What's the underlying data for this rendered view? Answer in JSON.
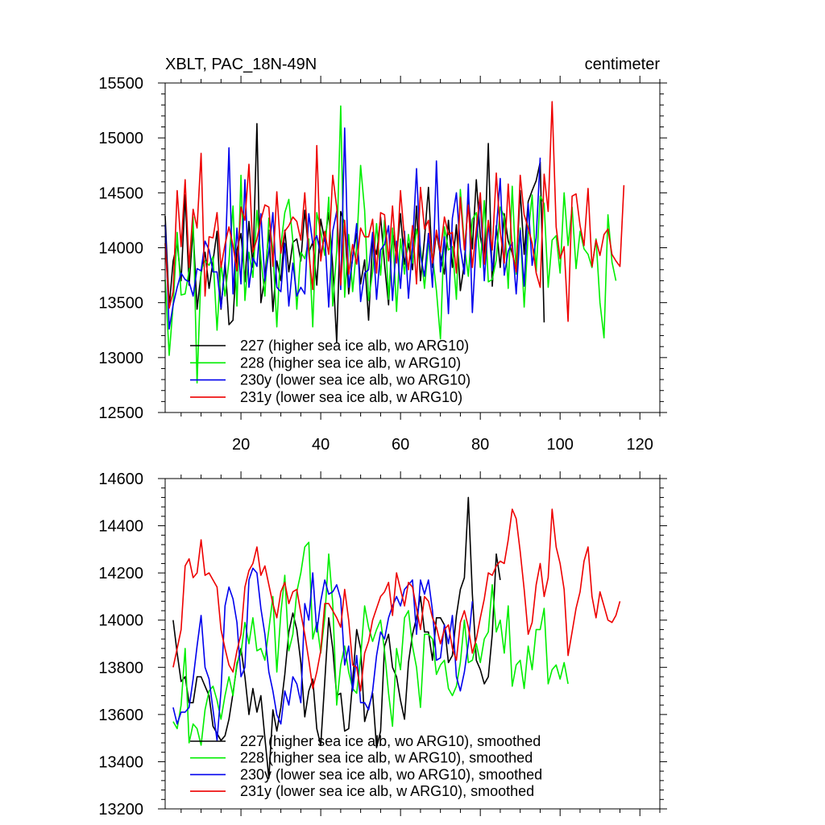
{
  "chart_data": [
    {
      "type": "line",
      "title": "XBLT, PAC_18N-49N",
      "units": "centimeter",
      "xlabel": "",
      "ylabel": "",
      "xlim": [
        1,
        125
      ],
      "ylim": [
        12500,
        15500
      ],
      "xticks": [
        20,
        40,
        60,
        80,
        100,
        120
      ],
      "xtick_labels": [
        "20",
        "40",
        "60",
        "80",
        "100",
        "120"
      ],
      "yticks": [
        12500,
        13000,
        13500,
        14000,
        14500,
        15000,
        15500
      ],
      "ytick_labels": [
        "12500",
        "13000",
        "13500",
        "14000",
        "14500",
        "15000",
        "15500"
      ],
      "legend_position": "bottom-left",
      "series": [
        {
          "name": "227 (higher sea ice alb, wo ARG10)",
          "color": "#000000",
          "x_start": 1,
          "values": [
            14290,
            13460,
            13880,
            14040,
            13700,
            14480,
            13660,
            14180,
            13440,
            13770,
            13960,
            13630,
            13880,
            14150,
            13440,
            13870,
            13300,
            13340,
            13980,
            14130,
            13690,
            14240,
            13820,
            15130,
            13500,
            13730,
            14160,
            13420,
            13880,
            13700,
            14160,
            13780,
            14050,
            14080,
            13880,
            14340,
            13960,
            14050,
            13660,
            14260,
            14060,
            14320,
            13830,
            13140,
            14330,
            14220,
            13580,
            13920,
            14130,
            13670,
            13890,
            13340,
            14060,
            13940,
            14280,
            13850,
            13480,
            14150,
            13920,
            14310,
            13850,
            14040,
            13800,
            14380,
            13700,
            14080,
            14550,
            13820,
            14140,
            13930,
            13760,
            14250,
            13820,
            14210,
            13610,
            13860,
            14480,
            13990,
            14620,
            14100,
            13890,
            14950,
            13650,
            14200,
            13820,
            14310,
            14060,
            13950,
            13800,
            14520,
            13940,
            14420,
            14520,
            14610,
            14780,
            13320
          ]
        },
        {
          "name": "228 (higher sea ice alb, w ARG10)",
          "color": "#00ee00",
          "x_start": 1,
          "values": [
            13710,
            13020,
            13480,
            14140,
            13570,
            13580,
            13790,
            14280,
            12770,
            13800,
            13880,
            13840,
            13920,
            13250,
            13860,
            13560,
            13880,
            14380,
            13470,
            14660,
            13520,
            13960,
            13730,
            14340,
            13900,
            13560,
            14270,
            13980,
            13280,
            14020,
            14320,
            14440,
            14060,
            13440,
            13960,
            13900,
            14080,
            13280,
            14320,
            14150,
            13930,
            14460,
            13470,
            13970,
            15290,
            13550,
            14120,
            13600,
            14010,
            14750,
            14340,
            13520,
            13780,
            14220,
            13750,
            14250,
            13530,
            14180,
            13420,
            14080,
            13760,
            14120,
            13860,
            14170,
            14000,
            13630,
            14040,
            13930,
            13610,
            13170,
            14190,
            13980,
            14010,
            13530,
            14530,
            14020,
            13740,
            14260,
            14320,
            13820,
            14430,
            13690,
            13710,
            13890,
            14370,
            14280,
            13630,
            14560,
            13760,
            14180,
            13460,
            14130,
            14480,
            13780,
            14470,
            14400,
            13640,
            14070,
            14110,
            13770,
            14500,
            14020,
            14370,
            13810,
            14150,
            13990,
            13940,
            13820,
            14080,
            13500,
            13180,
            14300,
            13870,
            13700
          ]
        },
        {
          "name": "230y (lower sea ice alb, wo ARG10)",
          "color": "#0000ee",
          "x_start": 1,
          "values": [
            14210,
            13260,
            13480,
            13640,
            13770,
            13710,
            13690,
            13560,
            13810,
            13790,
            14060,
            13980,
            13780,
            13780,
            13450,
            13840,
            14910,
            13580,
            14180,
            13670,
            14620,
            13640,
            13910,
            13830,
            14310,
            13700,
            13970,
            14320,
            13640,
            13600,
            14040,
            13470,
            13860,
            13560,
            13640,
            13580,
            14310,
            14040,
            14110,
            13930,
            14120,
            13460,
            14150,
            14330,
            13620,
            15090,
            13640,
            13900,
            14220,
            13510,
            13770,
            13800,
            14140,
            13530,
            13980,
            14030,
            14200,
            13520,
            14060,
            13630,
            14150,
            13540,
            14010,
            14720,
            13930,
            13740,
            14130,
            13640,
            14790,
            13780,
            14100,
            13400,
            14270,
            14500,
            14000,
            13760,
            14580,
            13410,
            14070,
            14440,
            13700,
            14230,
            13790,
            14160,
            14630,
            13750,
            13970,
            14050,
            13580,
            14160,
            13650,
            14400,
            13840,
            14090,
            14820
          ]
        },
        {
          "name": "231y (lower sea ice alb, w ARG10)",
          "color": "#ee0000",
          "x_start": 1,
          "values": [
            14040,
            13450,
            13600,
            14520,
            14010,
            14620,
            13820,
            14350,
            14180,
            14860,
            13560,
            14100,
            14090,
            14320,
            13820,
            14030,
            14190,
            14020,
            13790,
            14370,
            14250,
            14760,
            13960,
            14080,
            14250,
            14390,
            14370,
            13830,
            14510,
            13950,
            14150,
            14200,
            14280,
            14240,
            14070,
            14500,
            13950,
            13620,
            14930,
            13880,
            14150,
            13940,
            14660,
            14370,
            13660,
            14250,
            13760,
            14030,
            13850,
            14180,
            14100,
            14100,
            14260,
            13770,
            14320,
            14300,
            13880,
            14380,
            13860,
            14520,
            14070,
            13800,
            14200,
            13670,
            14550,
            14170,
            14250,
            13860,
            14160,
            13960,
            14280,
            14120,
            14140,
            13770,
            14460,
            13980,
            14390,
            13820,
            14170,
            14500,
            13850,
            14250,
            13980,
            14680,
            14150,
            13860,
            14580,
            13970,
            13780,
            14660,
            14300,
            14180,
            14040,
            13770,
            13640,
            14670,
            14330,
            15330,
            14190,
            13900,
            14010,
            13330,
            14470,
            14490,
            14200,
            14020,
            14540,
            13830,
            14070,
            13930,
            14120,
            14170,
            13940,
            13880,
            13830,
            14570
          ]
        }
      ]
    },
    {
      "type": "line",
      "title": "",
      "xlabel": "",
      "ylabel": "",
      "xlim": [
        1,
        125
      ],
      "ylim": [
        13200,
        14600
      ],
      "xticks": [
        20,
        40,
        60,
        80,
        100,
        120
      ],
      "yticks": [
        13200,
        13400,
        13600,
        13800,
        14000,
        14200,
        14400,
        14600
      ],
      "ytick_labels": [
        "13200",
        "13400",
        "13600",
        "13800",
        "14000",
        "14200",
        "14400",
        "14600"
      ],
      "legend_position": "bottom-left",
      "series": [
        {
          "name": "227 (higher sea ice alb, wo ARG10), smoothed",
          "color": "#000000",
          "x_start": 3,
          "values": [
            14000,
            13860,
            13740,
            13760,
            13650,
            13650,
            13760,
            13760,
            13720,
            13680,
            13550,
            13520,
            13490,
            13510,
            13580,
            13690,
            13810,
            13880,
            13760,
            13600,
            13710,
            13610,
            13680,
            13500,
            13330,
            13620,
            13530,
            13630,
            13770,
            13950,
            14030,
            13960,
            13820,
            13590,
            13700,
            13750,
            13540,
            13470,
            13740,
            14010,
            13880,
            13680,
            13690,
            13530,
            13540,
            13740,
            13960,
            13880,
            13570,
            13630,
            13690,
            13460,
            13530,
            13890,
            13940,
            13800,
            13760,
            13660,
            13580,
            13820,
            13940,
            14010,
            14100,
            13950,
            13950,
            13830,
            14010,
            14010,
            13980,
            13820,
            13850,
            14020,
            14130,
            14180,
            14520,
            14110,
            13830,
            13790,
            13730,
            13760,
            13940,
            14280,
            14170
          ]
        },
        {
          "name": "228 (higher sea ice alb, w ARG10), smoothed",
          "color": "#00ee00",
          "x_start": 3,
          "values": [
            13570,
            13540,
            13640,
            13880,
            13480,
            13560,
            13540,
            13470,
            13620,
            13700,
            13720,
            13660,
            13580,
            13680,
            13760,
            13680,
            13820,
            13860,
            13990,
            13900,
            14010,
            13870,
            13880,
            13830,
            13960,
            14100,
            13780,
            14030,
            14190,
            13870,
            13940,
            14120,
            14200,
            14310,
            14330,
            13920,
            13990,
            13860,
            14010,
            14280,
            14070,
            13640,
            13810,
            13890,
            13780,
            13710,
            13690,
            13840,
            14060,
            13970,
            13910,
            13960,
            14000,
            13870,
            13690,
            13550,
            13880,
            13790,
            14010,
            14040,
            13890,
            13800,
            13630,
            13940,
            13940,
            13920,
            13770,
            13810,
            13830,
            13710,
            13680,
            13720,
            13820,
            14000,
            13820,
            13830,
            13900,
            13820,
            13920,
            13950,
            14150,
            13950,
            14000,
            13860,
            14060,
            13720,
            13810,
            13830,
            13710,
            13890,
            13790,
            13960,
            13960,
            14050,
            13730,
            13790,
            13810,
            13750,
            13820,
            13730
          ]
        },
        {
          "name": "230y (lower sea ice alb, wo ARG10), smoothed",
          "color": "#0000ee",
          "x_start": 3,
          "values": [
            13630,
            13560,
            13610,
            13610,
            13630,
            13750,
            13890,
            14020,
            13800,
            13750,
            13620,
            13490,
            13700,
            14060,
            14140,
            14090,
            13990,
            13760,
            13800,
            14170,
            14220,
            14200,
            14050,
            13940,
            13780,
            13700,
            13600,
            13560,
            13700,
            13640,
            13760,
            13730,
            13650,
            14070,
            14000,
            14200,
            13950,
            14080,
            14170,
            14110,
            14120,
            14150,
            14090,
            13810,
            13890,
            13700,
            13850,
            13650,
            13650,
            13620,
            13700,
            13850,
            13950,
            13920,
            14010,
            14060,
            14100,
            14060,
            14130,
            14150,
            14170,
            13940,
            14170,
            14110,
            14170,
            14040,
            13830,
            13840,
            13980,
            13900,
            14020,
            13760,
            13700,
            13780,
            13900,
            14080
          ]
        },
        {
          "name": "231y (lower sea ice alb, w ARG10), smoothed",
          "color": "#ee0000",
          "x_start": 3,
          "values": [
            13800,
            13880,
            13960,
            14230,
            14260,
            14180,
            14200,
            14340,
            14190,
            14200,
            14170,
            14140,
            13960,
            13880,
            13810,
            13780,
            13870,
            13940,
            14140,
            14210,
            14240,
            14310,
            14190,
            14230,
            14150,
            14070,
            14010,
            14120,
            14160,
            14070,
            14120,
            14130,
            14030,
            13940,
            13830,
            13710,
            13780,
            13870,
            14070,
            14070,
            14040,
            14010,
            13970,
            14130,
            14000,
            13810,
            13800,
            13700,
            13860,
            13910,
            14000,
            14050,
            14100,
            14120,
            14160,
            14020,
            14200,
            14130,
            14060,
            14160,
            14140,
            14050,
            13960,
            14100,
            14080,
            14010,
            13970,
            13900,
            13960,
            13980,
            13880,
            13830,
            13990,
            14040,
            13970,
            13860,
            13920,
            14010,
            14090,
            14200,
            14190,
            14230,
            14250,
            14240,
            14340,
            14470,
            14430,
            14290,
            14130,
            13940,
            13990,
            14150,
            14240,
            14100,
            14180,
            14470,
            14310,
            14240,
            14130,
            13850,
            13950,
            14050,
            14120,
            14250,
            14310,
            14100,
            14010,
            14120,
            14060,
            14000,
            13990,
            14020,
            14080
          ]
        }
      ]
    }
  ]
}
